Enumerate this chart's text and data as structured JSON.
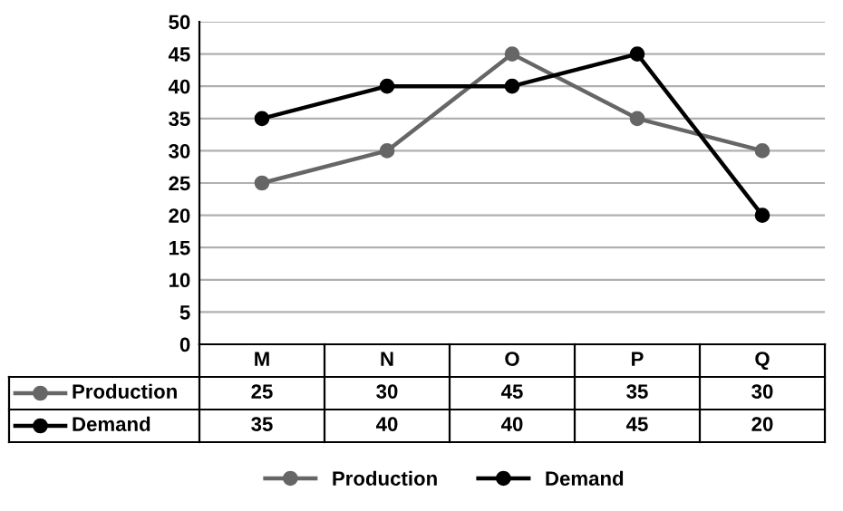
{
  "chart_data": {
    "type": "line",
    "categories": [
      "M",
      "N",
      "O",
      "P",
      "Q"
    ],
    "series": [
      {
        "name": "Production",
        "color": "#666666",
        "values": [
          25,
          30,
          45,
          35,
          30
        ]
      },
      {
        "name": "Demand",
        "color": "#000000",
        "values": [
          35,
          40,
          40,
          45,
          20
        ]
      }
    ],
    "ylim": [
      0,
      50
    ],
    "yticks": [
      0,
      5,
      10,
      15,
      20,
      25,
      30,
      35,
      40,
      45,
      50
    ],
    "grid": "y",
    "legend": "bottom",
    "marker": "circle",
    "line_style": "solid",
    "data_labels": true
  }
}
